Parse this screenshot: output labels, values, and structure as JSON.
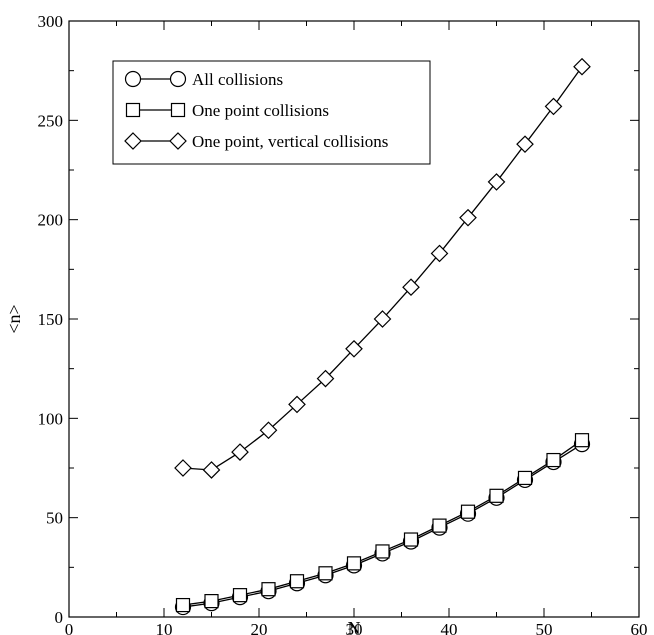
{
  "chart_data": {
    "type": "line",
    "title": "",
    "xlabel": "N",
    "ylabel": "<n>",
    "xlim": [
      0,
      60
    ],
    "ylim": [
      0,
      300
    ],
    "x_ticks": [
      0,
      10,
      20,
      30,
      40,
      50,
      60
    ],
    "y_ticks": [
      0,
      50,
      100,
      150,
      200,
      250,
      300
    ],
    "grid": false,
    "legend_position": "top-left",
    "x": [
      12,
      15,
      18,
      21,
      24,
      27,
      30,
      33,
      36,
      39,
      42,
      45,
      48,
      51,
      54
    ],
    "series": [
      {
        "name": "All collisions",
        "marker": "circle",
        "values": [
          5,
          7,
          10,
          13,
          17,
          21,
          26,
          32,
          38,
          45,
          52,
          60,
          69,
          78,
          87
        ]
      },
      {
        "name": "One point collisions",
        "marker": "square",
        "values": [
          6,
          8,
          11,
          14,
          18,
          22,
          27,
          33,
          39,
          46,
          53,
          61,
          70,
          79,
          89
        ]
      },
      {
        "name": "One point, vertical collisions",
        "marker": "diamond",
        "values": [
          75,
          74,
          83,
          94,
          107,
          120,
          135,
          150,
          166,
          183,
          201,
          219,
          238,
          257,
          277
        ]
      }
    ],
    "colors": {
      "line": "#000000",
      "marker_fill": "#ffffff"
    }
  }
}
